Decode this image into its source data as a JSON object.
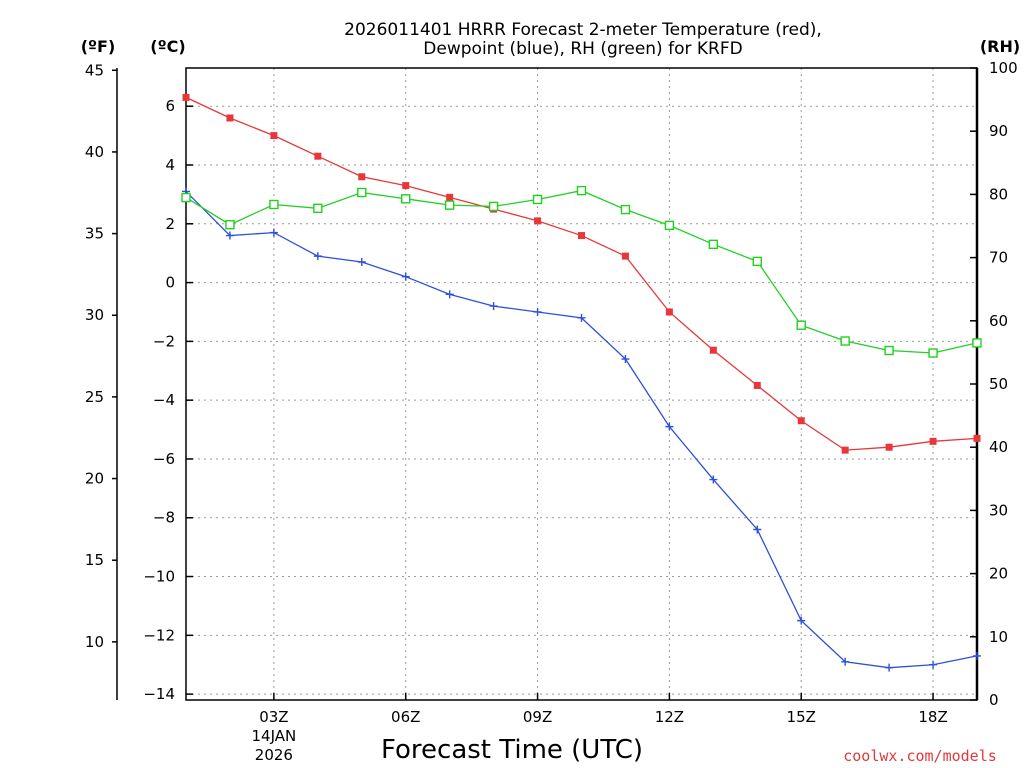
{
  "chart_data": {
    "type": "line",
    "title_line1": "2026011401 HRRR Forecast 2-meter Temperature (red),",
    "title_line2": "Dewpoint (blue), RH (green) for KRFD",
    "xlabel": "Forecast Time (UTC)",
    "unit_f": "(ºF)",
    "unit_c": "(ºC)",
    "unit_rh": "(RH)",
    "credit": "coolwx.com/models",
    "x": [
      1,
      2,
      3,
      4,
      5,
      6,
      7,
      8,
      9,
      10,
      11,
      12,
      13,
      14,
      15,
      16,
      17,
      18,
      19
    ],
    "xlim": [
      1,
      19
    ],
    "x_ticks": [
      {
        "x": 3,
        "label": "03Z",
        "sub1": "14JAN",
        "sub2": "2026"
      },
      {
        "x": 6,
        "label": "06Z",
        "sub1": "",
        "sub2": ""
      },
      {
        "x": 9,
        "label": "09Z",
        "sub1": "",
        "sub2": ""
      },
      {
        "x": 12,
        "label": "12Z",
        "sub1": "",
        "sub2": ""
      },
      {
        "x": 15,
        "label": "15Z",
        "sub1": "",
        "sub2": ""
      },
      {
        "x": 18,
        "label": "18Z",
        "sub1": "",
        "sub2": ""
      }
    ],
    "c_range": [
      -14.2,
      7.3
    ],
    "c_ticks": [
      6,
      4,
      2,
      0,
      -2,
      -4,
      -6,
      -8,
      -10,
      -12,
      -14
    ],
    "c_tick_labels": [
      "6",
      "4",
      "2",
      "0",
      "−2",
      "−4",
      "−6",
      "−8",
      "−10",
      "−12",
      "−14"
    ],
    "f_ticks": [
      45,
      40,
      35,
      30,
      25,
      20,
      15,
      10
    ],
    "rh_range": [
      0,
      100
    ],
    "rh_ticks": [
      100,
      90,
      80,
      70,
      60,
      50,
      40,
      30,
      20,
      10,
      0
    ],
    "series": [
      {
        "name": "Temperature",
        "unit": "C",
        "color": "#e8373a",
        "marker": "filled-square",
        "values": [
          6.3,
          5.6,
          5.0,
          4.3,
          3.6,
          3.3,
          2.9,
          2.5,
          2.1,
          1.6,
          0.9,
          -1.0,
          -2.3,
          -3.5,
          -4.7,
          -5.7,
          -5.6,
          -5.4,
          -5.3
        ]
      },
      {
        "name": "Dewpoint",
        "unit": "C",
        "color": "#2e4fd9",
        "marker": "plus",
        "values": [
          3.1,
          1.6,
          1.7,
          0.9,
          0.7,
          0.2,
          -0.4,
          -0.8,
          -1.0,
          -1.2,
          -2.6,
          -4.9,
          -6.7,
          -8.4,
          -11.5,
          -12.9,
          -13.1,
          -13.0,
          -12.7
        ]
      },
      {
        "name": "RH",
        "unit": "%",
        "color": "#22d022",
        "marker": "open-square",
        "values": [
          79.5,
          75.2,
          78.4,
          77.8,
          80.3,
          79.3,
          78.3,
          78.1,
          79.2,
          80.6,
          77.6,
          75.1,
          72.1,
          69.4,
          59.3,
          56.8,
          55.3,
          54.9,
          56.5
        ]
      }
    ]
  }
}
